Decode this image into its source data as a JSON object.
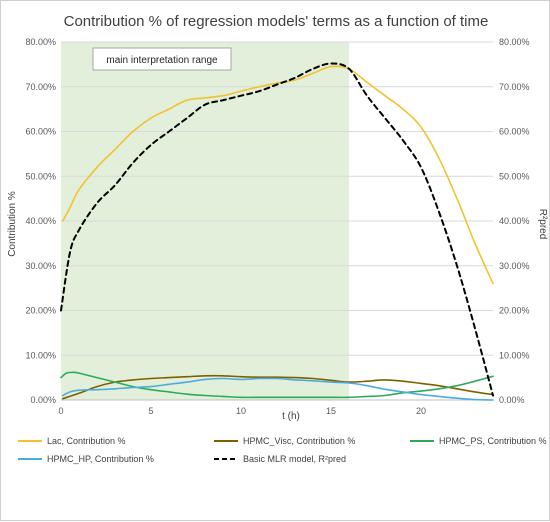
{
  "chart_data": {
    "type": "line",
    "title": "Contribution % of regression models' terms as a function of time",
    "xlabel": "t (h)",
    "ylabel": "Contribution %",
    "y2label": "R²pred",
    "xlim": [
      0,
      24
    ],
    "ylim": [
      0,
      80
    ],
    "y2lim": [
      0,
      80
    ],
    "xticks": [
      0,
      5,
      10,
      15,
      20
    ],
    "yticks": [
      "0.00%",
      "10.00%",
      "20.00%",
      "30.00%",
      "40.00%",
      "50.00%",
      "60.00%",
      "70.00%",
      "80.00%"
    ],
    "y2ticks": [
      "0.00%",
      "10.00%",
      "20.00%",
      "30.00%",
      "40.00%",
      "50.00%",
      "60.00%",
      "70.00%",
      "80.00%"
    ],
    "grid": true,
    "legend_position": "bottom",
    "annotation": {
      "label": "main interpretation range",
      "x_start": 0,
      "x_end": 16,
      "color": "#e2efda"
    },
    "series": [
      {
        "name": "Lac, Contribution %",
        "color": "#f2c233",
        "dash": "solid",
        "points": [
          [
            0.1,
            40
          ],
          [
            0.5,
            43
          ],
          [
            1,
            47
          ],
          [
            2,
            52
          ],
          [
            3,
            56
          ],
          [
            4,
            60
          ],
          [
            5,
            63
          ],
          [
            6,
            65
          ],
          [
            7,
            67
          ],
          [
            8,
            67.5
          ],
          [
            9,
            68
          ],
          [
            10,
            69
          ],
          [
            11,
            70
          ],
          [
            12,
            70.8
          ],
          [
            13,
            71.5
          ],
          [
            14,
            73
          ],
          [
            15,
            74.5
          ],
          [
            16,
            74
          ],
          [
            17,
            71
          ],
          [
            18,
            68
          ],
          [
            19,
            65
          ],
          [
            20,
            61
          ],
          [
            21,
            54
          ],
          [
            22,
            45
          ],
          [
            23,
            35
          ],
          [
            24,
            26
          ]
        ]
      },
      {
        "name": "HPMC_Visc, Contribution %",
        "color": "#7f6000",
        "dash": "solid",
        "points": [
          [
            0.1,
            0.3
          ],
          [
            1,
            1.5
          ],
          [
            2,
            3
          ],
          [
            3,
            4
          ],
          [
            4,
            4.5
          ],
          [
            5,
            4.8
          ],
          [
            6,
            5
          ],
          [
            7,
            5.2
          ],
          [
            8,
            5.4
          ],
          [
            9,
            5.4
          ],
          [
            10,
            5.2
          ],
          [
            11,
            5.1
          ],
          [
            12,
            5.1
          ],
          [
            13,
            5
          ],
          [
            14,
            4.8
          ],
          [
            15,
            4.4
          ],
          [
            16,
            4
          ],
          [
            17,
            4.2
          ],
          [
            18,
            4.5
          ],
          [
            19,
            4.2
          ],
          [
            20,
            3.7
          ],
          [
            21,
            3.2
          ],
          [
            22,
            2.5
          ],
          [
            23,
            1.8
          ],
          [
            24,
            1.2
          ]
        ]
      },
      {
        "name": "HPMC_PS, Contribution %",
        "color": "#2eaa5c",
        "dash": "solid",
        "points": [
          [
            0,
            5
          ],
          [
            0.3,
            6
          ],
          [
            0.7,
            6.2
          ],
          [
            1,
            6
          ],
          [
            2,
            5
          ],
          [
            3,
            4
          ],
          [
            4,
            3
          ],
          [
            5,
            2.3
          ],
          [
            6,
            1.8
          ],
          [
            7,
            1.3
          ],
          [
            8,
            1
          ],
          [
            9,
            0.8
          ],
          [
            10,
            0.6
          ],
          [
            11,
            0.6
          ],
          [
            12,
            0.6
          ],
          [
            13,
            0.6
          ],
          [
            14,
            0.6
          ],
          [
            15,
            0.6
          ],
          [
            16,
            0.6
          ],
          [
            17,
            0.8
          ],
          [
            18,
            1
          ],
          [
            19,
            1.6
          ],
          [
            20,
            2
          ],
          [
            21,
            2.5
          ],
          [
            22,
            3.2
          ],
          [
            23,
            4.2
          ],
          [
            24,
            5.3
          ]
        ]
      },
      {
        "name": "HPMC_HP, Contribution %",
        "color": "#4bacde",
        "dash": "solid",
        "points": [
          [
            0.1,
            1
          ],
          [
            0.5,
            1.8
          ],
          [
            1,
            2.2
          ],
          [
            2,
            2.3
          ],
          [
            3,
            2.5
          ],
          [
            4,
            2.8
          ],
          [
            5,
            3
          ],
          [
            6,
            3.5
          ],
          [
            7,
            4
          ],
          [
            8,
            4.6
          ],
          [
            9,
            4.8
          ],
          [
            10,
            4.6
          ],
          [
            11,
            4.8
          ],
          [
            12,
            4.8
          ],
          [
            13,
            4.5
          ],
          [
            14,
            4.3
          ],
          [
            15,
            4
          ],
          [
            16,
            3.8
          ],
          [
            17,
            3.2
          ],
          [
            18,
            2.4
          ],
          [
            19,
            1.8
          ],
          [
            20,
            1.2
          ],
          [
            21,
            0.8
          ],
          [
            22,
            0.4
          ],
          [
            23,
            0.1
          ],
          [
            24,
            0
          ]
        ]
      },
      {
        "name": "Basic MLR model, R²pred",
        "color": "#000000",
        "dash": "dashed",
        "axis": "right",
        "points": [
          [
            0,
            20
          ],
          [
            0.5,
            33
          ],
          [
            1,
            38
          ],
          [
            2,
            44
          ],
          [
            3,
            48
          ],
          [
            4,
            53
          ],
          [
            5,
            57
          ],
          [
            6,
            60
          ],
          [
            7,
            63
          ],
          [
            8,
            66
          ],
          [
            9,
            67
          ],
          [
            10,
            68
          ],
          [
            11,
            69
          ],
          [
            12,
            70.5
          ],
          [
            13,
            72
          ],
          [
            14,
            74
          ],
          [
            15,
            75.2
          ],
          [
            16,
            74
          ],
          [
            17,
            68
          ],
          [
            18,
            63
          ],
          [
            19,
            58
          ],
          [
            20,
            52
          ],
          [
            21,
            42
          ],
          [
            22,
            30
          ],
          [
            23,
            16
          ],
          [
            24,
            1
          ]
        ]
      }
    ]
  }
}
